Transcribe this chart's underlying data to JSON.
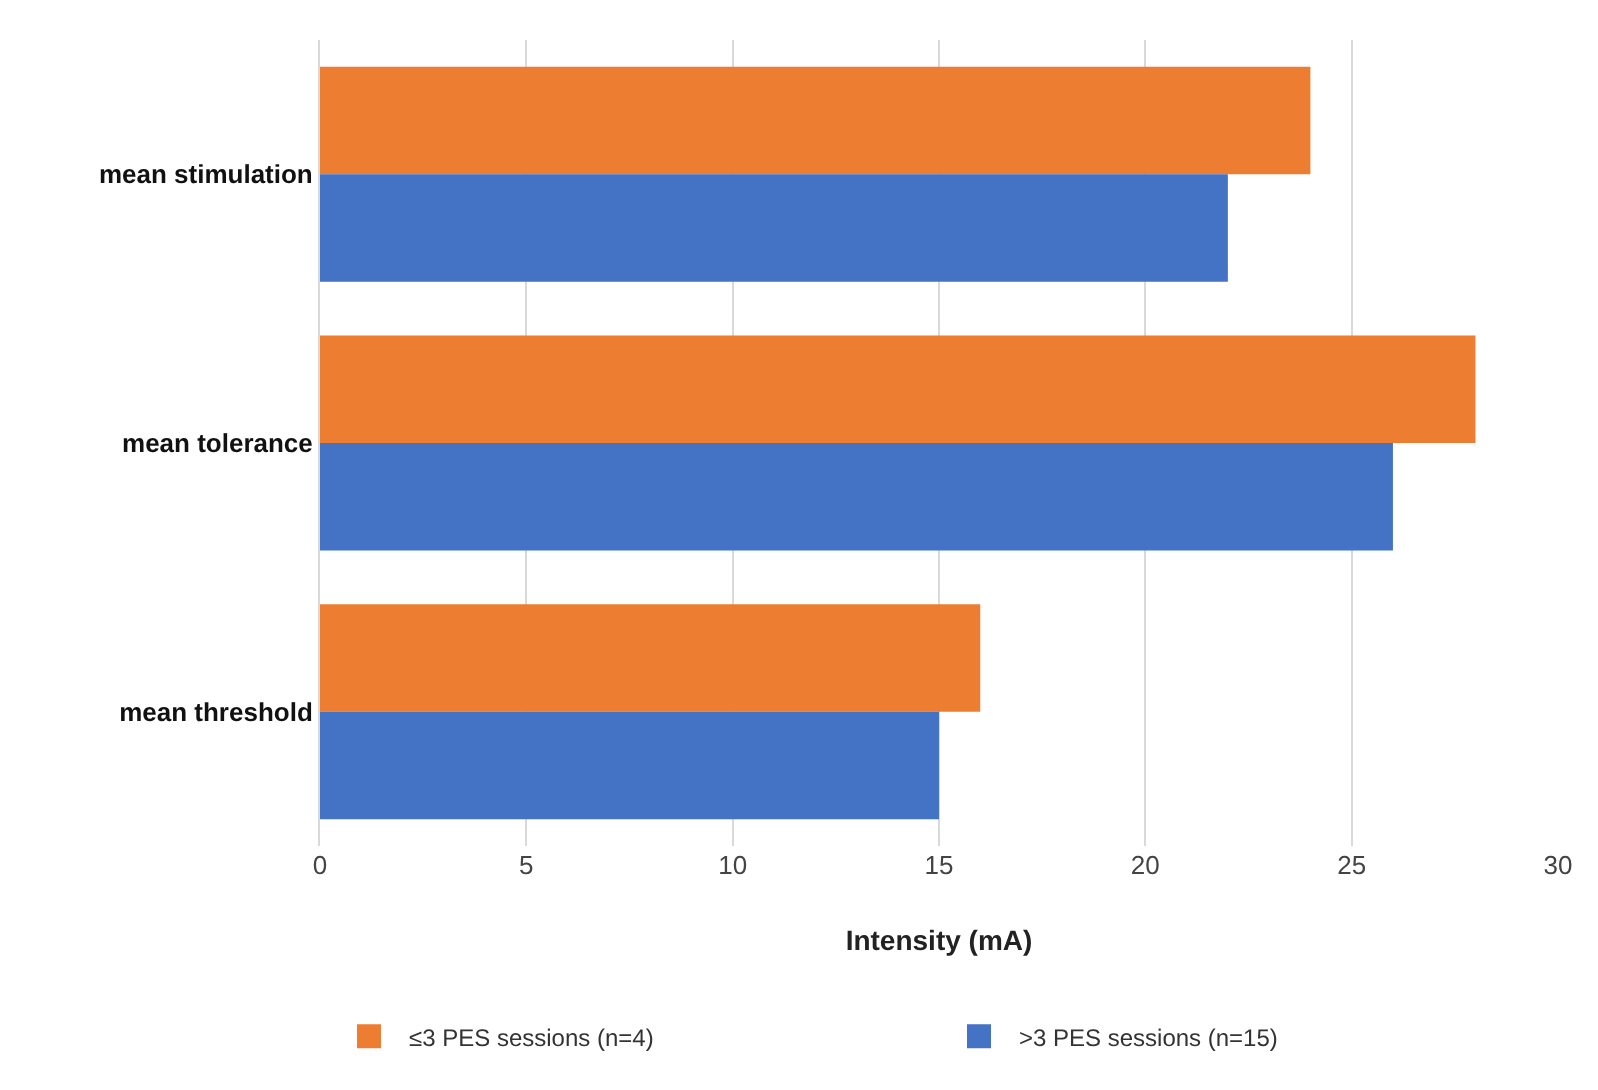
{
  "chart_data": {
    "type": "bar",
    "orientation": "horizontal",
    "xlabel": "Intensity (mA)",
    "categories": [
      "mean stimulation",
      "mean tolerance",
      "mean threshold"
    ],
    "series": [
      {
        "name": "≤3 PES sessions (n=4)",
        "color": "#ed7d31",
        "values": [
          24,
          28,
          16
        ]
      },
      {
        "name": ">3 PES sessions (n=15)",
        "color": "#4472c4",
        "values": [
          22,
          26,
          15
        ]
      }
    ],
    "xlim": [
      0,
      30
    ],
    "xticks": [
      0,
      5,
      10,
      15,
      20,
      25,
      30
    ],
    "grid": "x",
    "legend": "bottom"
  }
}
